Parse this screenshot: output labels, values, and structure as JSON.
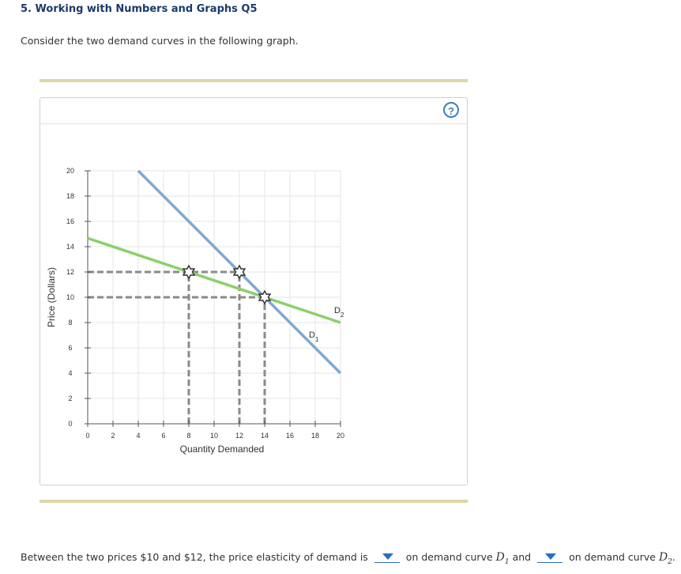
{
  "question": {
    "title": "5. Working with Numbers and Graphs Q5",
    "prompt": "Consider the two demand curves in the following graph."
  },
  "panel": {
    "help_label": "?"
  },
  "chart_data": {
    "type": "line",
    "xlabel": "Quantity Demanded",
    "ylabel": "Price (Dollars)",
    "xlim": [
      0,
      20
    ],
    "ylim": [
      0,
      20
    ],
    "x_ticks": [
      0,
      2,
      4,
      6,
      8,
      10,
      12,
      14,
      16,
      18,
      20
    ],
    "y_ticks": [
      0,
      2,
      4,
      6,
      8,
      10,
      12,
      14,
      16,
      18,
      20
    ],
    "grid": true,
    "series": [
      {
        "name": "D1",
        "label_main": "D",
        "label_sub": "1",
        "color": "#7fa8d4",
        "x": [
          4,
          20
        ],
        "y": [
          20,
          4
        ]
      },
      {
        "name": "D2",
        "label_main": "D",
        "label_sub": "2",
        "color": "#8cd068",
        "x": [
          0,
          20
        ],
        "y": [
          14.67,
          8
        ]
      }
    ],
    "points": [
      {
        "x": 8,
        "y": 12
      },
      {
        "x": 12,
        "y": 12
      },
      {
        "x": 14,
        "y": 10
      }
    ],
    "guides": [
      {
        "from": [
          0,
          12
        ],
        "to": [
          12,
          12
        ]
      },
      {
        "from": [
          0,
          10
        ],
        "to": [
          14,
          10
        ]
      },
      {
        "from": [
          8,
          0
        ],
        "to": [
          8,
          12
        ]
      },
      {
        "from": [
          12,
          0
        ],
        "to": [
          12,
          12
        ]
      },
      {
        "from": [
          14,
          0
        ],
        "to": [
          14,
          10
        ]
      }
    ],
    "guide_color": "#8a8a8a",
    "grid_color": "#e6e6e6"
  },
  "answer": {
    "part1": "Between the two prices $10 and $12, the price elasticity of demand is",
    "part2": "on demand curve",
    "curve1_main": "D",
    "curve1_sub": "1",
    "and": "and",
    "part3": "on demand curve",
    "curve2_main": "D",
    "curve2_sub": "2",
    "end": ".",
    "dropdown1_value": "",
    "dropdown2_value": ""
  }
}
